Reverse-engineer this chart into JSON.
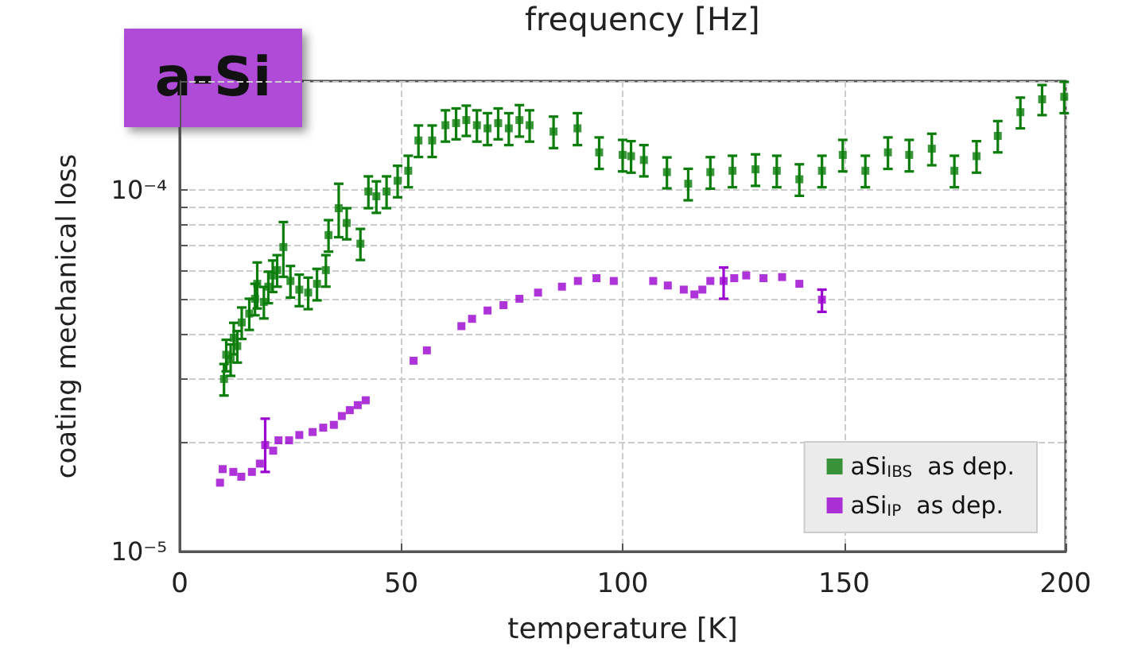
{
  "chart_data": {
    "type": "scatter",
    "xlabel": "temperature [K]",
    "ylabel": "coating mechanical loss",
    "annotations": [
      "a-Si",
      "frequency [Hz]"
    ],
    "log": "y",
    "grid": true,
    "legend": "bottom right",
    "marker": "square",
    "xlim": [
      0,
      200
    ],
    "xticks": [
      0,
      50,
      100,
      150,
      200
    ],
    "ylim": [
      1e-05,
      0.0002
    ],
    "yticks": [
      {
        "value": 1e-05,
        "label": "10⁻⁵"
      },
      {
        "value": 2e-05,
        "label": null
      },
      {
        "value": 3e-05,
        "label": null
      },
      {
        "value": 4e-05,
        "label": null
      },
      {
        "value": 5e-05,
        "label": null
      },
      {
        "value": 6e-05,
        "label": null
      },
      {
        "value": 7e-05,
        "label": null
      },
      {
        "value": 8e-05,
        "label": null
      },
      {
        "value": 9e-05,
        "label": null
      },
      {
        "value": 0.0001,
        "label": "10⁻⁴"
      },
      {
        "value": 0.0002,
        "label": null
      }
    ],
    "series": [
      {
        "name": "aSi$_{IBS}$  as dep.",
        "color": "#0b7d0b",
        "x": [
          10,
          10.5,
          11.5,
          12.2,
          13,
          14,
          15.7,
          17,
          17.5,
          19,
          20,
          21,
          22,
          23.4,
          25,
          27,
          29,
          31,
          33,
          33.6,
          35.9,
          37.7,
          40.8,
          42.6,
          44.4,
          46.7,
          49.2,
          51.6,
          53.9,
          57,
          60,
          62.4,
          64.7,
          67.1,
          69.5,
          71.9,
          74.3,
          76.7,
          79,
          84.4,
          89.8,
          94.7,
          100,
          101.9,
          104.8,
          110,
          114.8,
          119.8,
          124.8,
          130,
          134.8,
          139.9,
          145,
          149.7,
          154.8,
          159.9,
          164.7,
          169.8,
          174.9,
          179.9,
          184.7,
          189.8,
          194.7,
          199.7
        ],
        "values": [
          3e-05,
          3.5e-05,
          3.4e-05,
          3.9e-05,
          3.7e-05,
          4.3e-05,
          4.55e-05,
          5e-05,
          5.5e-05,
          4.9e-05,
          5.4e-05,
          5.8e-05,
          6e-05,
          6.95e-05,
          5.6e-05,
          5.3e-05,
          5.2e-05,
          5.5e-05,
          6e-05,
          7.5e-05,
          8.9e-05,
          8.1e-05,
          7.1e-05,
          9.9e-05,
          9.6e-05,
          9.9e-05,
          0.000106,
          0.000113,
          0.000137,
          0.000137,
          0.000151,
          0.000153,
          0.000156,
          0.000151,
          0.000148,
          0.000153,
          0.000148,
          0.000156,
          0.000151,
          0.000145,
          0.000148,
          0.000127,
          0.000125,
          0.000124,
          0.000121,
          0.000112,
          0.000104,
          0.000112,
          0.000113,
          0.000114,
          0.000113,
          0.000107,
          0.000113,
          0.000125,
          0.000113,
          0.000127,
          0.000125,
          0.00013,
          0.000113,
          0.000124,
          0.000141,
          0.000164,
          0.000178,
          0.000181
        ],
        "errors": [
          3e-06,
          3.5e-06,
          3.4e-06,
          3.9e-06,
          3.7e-06,
          4.3e-06,
          4.5e-06,
          5e-06,
          8e-06,
          4.9e-06,
          5.4e-06,
          5.8e-06,
          6e-06,
          1.2e-05,
          5.6e-06,
          5.3e-06,
          5.2e-06,
          5.5e-06,
          6e-06,
          7.5e-06,
          1.5e-05,
          8e-06,
          7e-06,
          1e-05,
          9.6e-06,
          1e-05,
          1.06e-05,
          1.13e-05,
          1.37e-05,
          1.37e-05,
          1.5e-05,
          1.5e-05,
          1.5e-05,
          1.5e-05,
          1.5e-05,
          1.5e-05,
          1.5e-05,
          1.56e-05,
          1.5e-05,
          1.45e-05,
          1.5e-05,
          1.27e-05,
          1.25e-05,
          1.24e-05,
          1.2e-05,
          1.1e-05,
          1.04e-05,
          1.12e-05,
          1.13e-05,
          1.14e-05,
          1.13e-05,
          1.07e-05,
          1.13e-05,
          1.25e-05,
          1.13e-05,
          1.27e-05,
          1.25e-05,
          1.3e-05,
          1.13e-05,
          1.24e-05,
          1.4e-05,
          1.6e-05,
          1.7e-05,
          1.8e-05
        ]
      },
      {
        "name": "aSi$_{IP}$  as dep.",
        "color": "#9a00d0",
        "x": [
          9.1,
          9.7,
          12.1,
          13.9,
          16.3,
          18.1,
          19.3,
          21.1,
          22.3,
          24.7,
          27,
          30,
          32.4,
          34.8,
          36.6,
          38.4,
          40.2,
          42,
          52.8,
          55.8,
          63.6,
          66,
          69.5,
          73.1,
          76.7,
          80.9,
          86.3,
          89.9,
          94.1,
          98,
          106.9,
          110.2,
          113.8,
          116.2,
          118,
          119.8,
          122.8,
          125.2,
          127.9,
          131.8,
          136,
          139.9,
          145
        ],
        "values": [
          1.55e-05,
          1.69e-05,
          1.66e-05,
          1.61e-05,
          1.66e-05,
          1.75e-05,
          1.97e-05,
          1.9e-05,
          2.03e-05,
          2.03e-05,
          2.1e-05,
          2.14e-05,
          2.2e-05,
          2.24e-05,
          2.37e-05,
          2.46e-05,
          2.54e-05,
          2.62e-05,
          3.37e-05,
          3.6e-05,
          4.2e-05,
          4.4e-05,
          4.64e-05,
          4.8e-05,
          5e-05,
          5.2e-05,
          5.4e-05,
          5.6e-05,
          5.7e-05,
          5.6e-05,
          5.6e-05,
          5.44e-05,
          5.3e-05,
          5.14e-05,
          5.3e-05,
          5.6e-05,
          5.6e-05,
          5.7e-05,
          5.8e-05,
          5.7e-05,
          5.74e-05,
          5.5e-05,
          4.97e-05
        ],
        "errors": [
          null,
          null,
          null,
          null,
          null,
          null,
          [
            1.66e-05,
            2.33e-05
          ],
          null,
          null,
          null,
          null,
          null,
          null,
          null,
          null,
          null,
          null,
          null,
          null,
          null,
          null,
          null,
          null,
          null,
          null,
          null,
          null,
          null,
          null,
          null,
          null,
          null,
          null,
          null,
          null,
          null,
          [
            5e-05,
            6.1e-05
          ],
          null,
          null,
          null,
          null,
          null,
          [
            4.6e-05,
            5.3e-05
          ]
        ]
      }
    ]
  }
}
